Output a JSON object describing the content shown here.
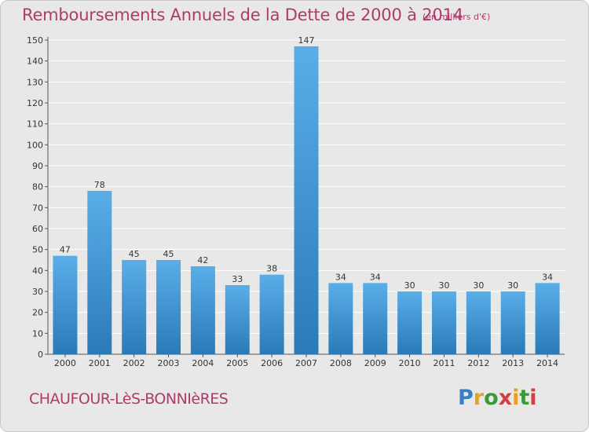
{
  "header": {
    "title": "Remboursements Annuels de la Dette de 2000 à 2014",
    "unit": "(en milliers d'€)"
  },
  "footer": {
    "place": "CHAUFOUR-LèS-BONNIèRES",
    "logo": "Proxiti"
  },
  "colors": {
    "title": "#b03a6a",
    "bar_light": "#5aaee8",
    "bar_dark": "#2a7ab8",
    "background": "#e8e8e8",
    "grid": "#ffffff",
    "logo_letters": [
      "#3a7fc1",
      "#e8a020",
      "#3a9a3a",
      "#d04040",
      "#e8a020",
      "#3a9a3a",
      "#d04040"
    ]
  },
  "chart_data": {
    "type": "bar",
    "categories": [
      "2000",
      "2001",
      "2002",
      "2003",
      "2004",
      "2005",
      "2006",
      "2007",
      "2008",
      "2009",
      "2010",
      "2011",
      "2012",
      "2013",
      "2014"
    ],
    "values": [
      47,
      78,
      45,
      45,
      42,
      33,
      38,
      147,
      34,
      34,
      30,
      30,
      30,
      30,
      34
    ],
    "data_labels": [
      "47",
      "78",
      "45",
      "45",
      "42",
      "33",
      "38",
      "147",
      "34",
      "34",
      "30",
      "30",
      "30",
      "30",
      "34"
    ],
    "y_ticks": [
      "0",
      "10",
      "20",
      "30",
      "40",
      "50",
      "60",
      "70",
      "80",
      "90",
      "100",
      "110",
      "120",
      "130",
      "140",
      "150"
    ],
    "ylim": [
      0,
      150
    ],
    "grid": true,
    "title": "Remboursements Annuels de la Dette de 2000 à 2014",
    "xlabel": "",
    "ylabel": ""
  }
}
